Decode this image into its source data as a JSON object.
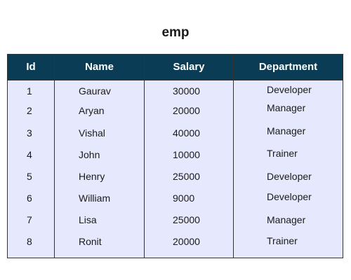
{
  "title": "emp",
  "columns": [
    "Id",
    "Name",
    "Salary",
    "Department"
  ],
  "rows": [
    {
      "id": "1",
      "name": "Gaurav",
      "salary": "30000",
      "department": "Developer"
    },
    {
      "id": "2",
      "name": "Aryan",
      "salary": "20000",
      "department": "Manager"
    },
    {
      "id": "3",
      "name": "Vishal",
      "salary": "40000",
      "department": "Manager"
    },
    {
      "id": "4",
      "name": "John",
      "salary": "10000",
      "department": "Trainer"
    },
    {
      "id": "5",
      "name": "Henry",
      "salary": "25000",
      "department": "Developer"
    },
    {
      "id": "6",
      "name": "William",
      "salary": "9000",
      "department": "Developer"
    },
    {
      "id": "7",
      "name": "Lisa",
      "salary": "25000",
      "department": "Manager"
    },
    {
      "id": "8",
      "name": "Ronit",
      "salary": "20000",
      "department": "Trainer"
    }
  ]
}
